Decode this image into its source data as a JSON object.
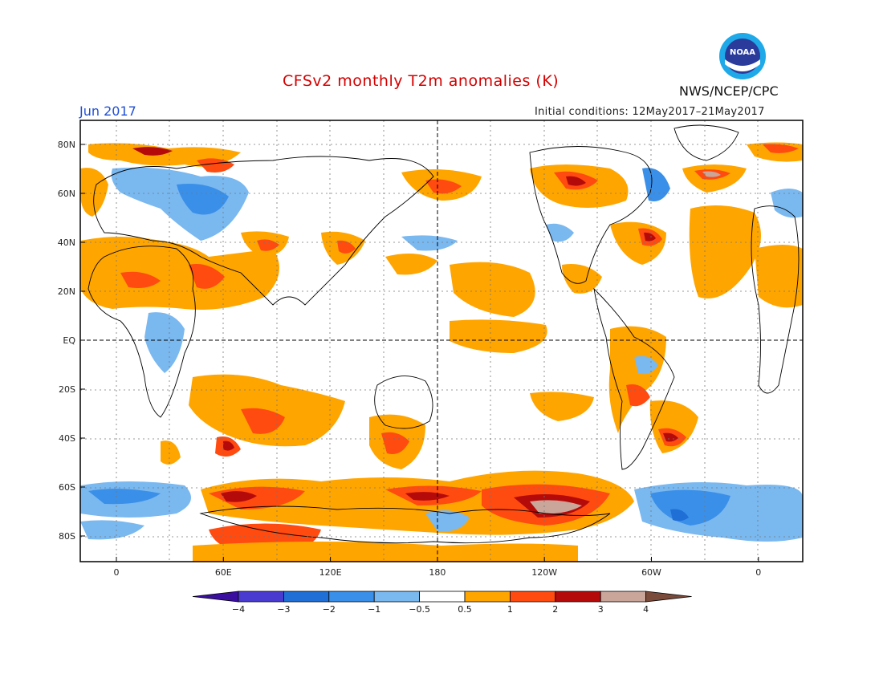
{
  "title": "CFSv2 monthly T2m anomalies (K)",
  "month": "Jun 2017",
  "initial_conditions": "Initial conditions: 12May2017–21May2017",
  "agency": "NWS/NCEP/CPC",
  "logo_text": "NOAA",
  "lat_ticks": [
    "80N",
    "60N",
    "40N",
    "20N",
    "EQ",
    "20S",
    "40S",
    "60S",
    "80S"
  ],
  "lon_ticks": [
    "0",
    "60E",
    "120E",
    "180",
    "120W",
    "60W",
    "0"
  ],
  "colorbar": {
    "labels": [
      "−4",
      "−3",
      "−2",
      "−1",
      "−0.5",
      "0.5",
      "1",
      "2",
      "3",
      "4"
    ],
    "colors": [
      "#3a0fa0",
      "#4a3bd0",
      "#1f6fd6",
      "#3a8fe8",
      "#7ab8f0",
      "#ffffff",
      "#ffa500",
      "#ff4a10",
      "#b50a0a",
      "#c9a59a",
      "#7a4a3a"
    ]
  },
  "colors": {
    "title": "#d40000",
    "month": "#1f4fd6",
    "cold_light": "#7ab8f0",
    "cold_mid": "#3a8fe8",
    "warm_light": "#ffa500",
    "warm_mid": "#ff4a10",
    "warm_strong": "#b50a0a",
    "warm_extreme": "#c9a59a"
  }
}
